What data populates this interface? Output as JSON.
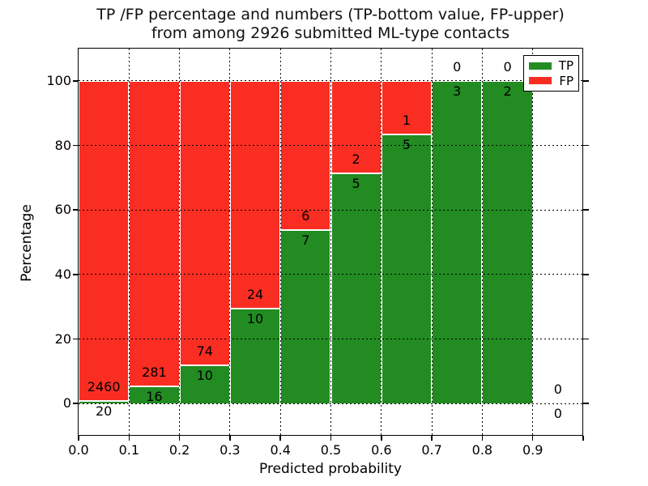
{
  "title": {
    "line1": "TP /FP percentage and numbers (TP-bottom value, FP-upper)",
    "line2": "from among 2926 submitted ML-type contacts"
  },
  "axes": {
    "xlabel": "Predicted probability",
    "ylabel": "Percentage",
    "xtick_labels": [
      "0.0",
      "0.1",
      "0.2",
      "0.3",
      "0.4",
      "0.5",
      "0.6",
      "0.7",
      "0.8",
      "0.9"
    ],
    "ytick_labels": [
      "0",
      "20",
      "40",
      "60",
      "80",
      "100"
    ],
    "ytick_values": [
      0,
      20,
      40,
      60,
      80,
      100
    ],
    "xlim": [
      0.0,
      1.0
    ],
    "ylim": [
      -10,
      110
    ],
    "grid_style": "dotted"
  },
  "legend": {
    "position": "upper-right",
    "items": [
      {
        "label": "TP",
        "color": "#228b22"
      },
      {
        "label": "FP",
        "color": "#f92d22"
      }
    ]
  },
  "colors": {
    "tp": "#228b22",
    "fp": "#f92d22",
    "bar_edge": "#ffffff",
    "text": "#000000",
    "background": "#ffffff"
  },
  "chart_data": {
    "type": "bar",
    "stacked": true,
    "title": "TP /FP percentage and numbers (TP-bottom value, FP-upper) from among 2926 submitted ML-type contacts",
    "xlabel": "Predicted probability",
    "ylabel": "Percentage",
    "total_contacts": 2926,
    "bin_width": 0.1,
    "categories": [
      "0.0-0.1",
      "0.1-0.2",
      "0.2-0.3",
      "0.3-0.4",
      "0.4-0.5",
      "0.5-0.6",
      "0.6-0.7",
      "0.7-0.8",
      "0.8-0.9",
      "0.9-1.0"
    ],
    "series": [
      {
        "name": "TP",
        "color": "#228b22",
        "counts": [
          20,
          16,
          10,
          10,
          7,
          5,
          5,
          3,
          2,
          0
        ]
      },
      {
        "name": "FP",
        "color": "#f92d22",
        "counts": [
          2460,
          281,
          74,
          24,
          6,
          2,
          1,
          0,
          0,
          0
        ]
      }
    ],
    "tp_pct": [
      0.81,
      5.39,
      11.9,
      29.41,
      53.85,
      71.43,
      83.33,
      100,
      100,
      0
    ],
    "fp_pct": [
      99.19,
      94.61,
      88.1,
      70.59,
      46.15,
      28.57,
      16.67,
      0,
      0,
      0
    ],
    "legend_position": "upper right",
    "grid": true
  }
}
